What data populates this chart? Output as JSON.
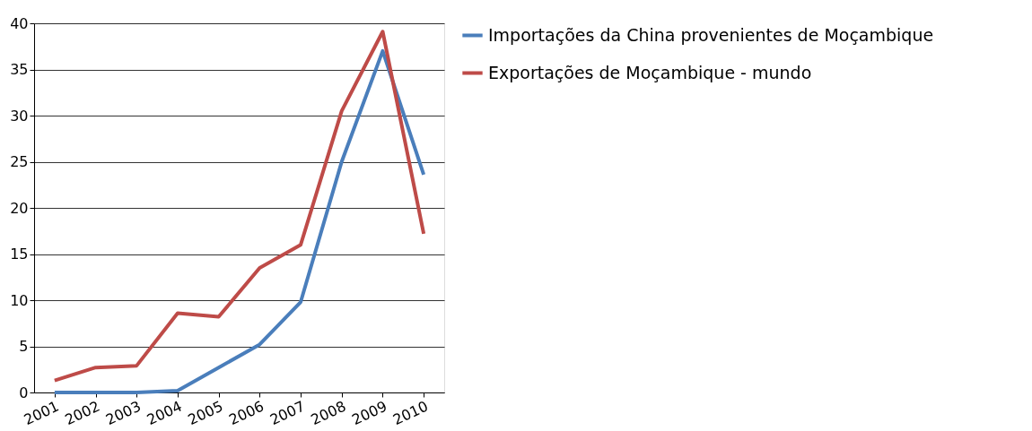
{
  "chart_data": {
    "type": "line",
    "categories": [
      "2001",
      "2002",
      "2003",
      "2004",
      "2005",
      "2006",
      "2007",
      "2008",
      "2009",
      "2010"
    ],
    "series": [
      {
        "name": "Importações da China provenientes de Moçambique",
        "color": "#4a7ebb",
        "values": [
          0,
          0,
          0,
          0.2,
          2.7,
          5.2,
          9.8,
          25,
          37,
          23.6
        ]
      },
      {
        "name": "Exportações de Moçambique - mundo",
        "color": "#be4b48",
        "values": [
          1.3,
          2.7,
          2.9,
          8.6,
          8.2,
          13.5,
          16,
          30.5,
          39.1,
          17.2
        ]
      }
    ],
    "ylim": [
      0,
      40
    ],
    "yticks": [
      0,
      5,
      10,
      15,
      20,
      25,
      30,
      35,
      40
    ],
    "grid": "y",
    "legend": "right",
    "marker": "none",
    "line_style": "solid"
  }
}
